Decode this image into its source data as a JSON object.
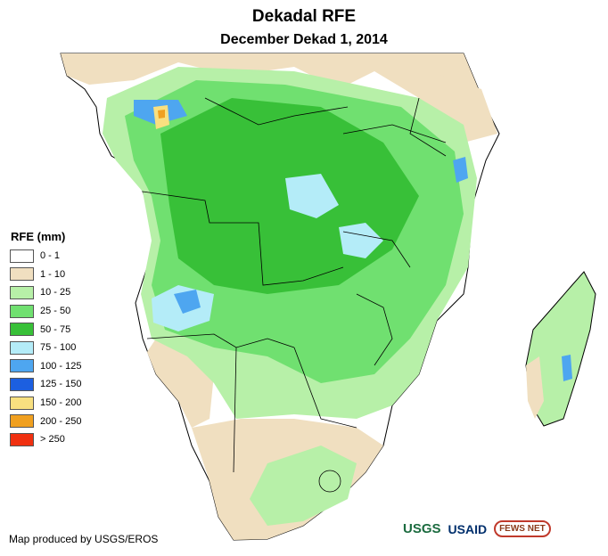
{
  "title": "Dekadal RFE",
  "subtitle": "December Dekad 1, 2014",
  "legend": {
    "title": "RFE (mm)",
    "items": [
      {
        "label": "0 - 1",
        "color": "#ffffff"
      },
      {
        "label": "1 - 10",
        "color": "#f0dfc0"
      },
      {
        "label": "10 - 25",
        "color": "#b7f0a8"
      },
      {
        "label": "25 - 50",
        "color": "#70e070"
      },
      {
        "label": "50 - 75",
        "color": "#38c038"
      },
      {
        "label": "75 - 100",
        "color": "#b4ecf8"
      },
      {
        "label": "100 - 125",
        "color": "#4ea6f0"
      },
      {
        "label": "125 - 150",
        "color": "#1c5fe0"
      },
      {
        "label": "150 - 200",
        "color": "#f8e080"
      },
      {
        "label": "200 - 250",
        "color": "#f0a020"
      },
      {
        "label": "> 250",
        "color": "#f03010"
      }
    ]
  },
  "credit": "Map produced by USGS/EROS",
  "logos": {
    "usgs": "USGS",
    "usaid": "USAID",
    "fews": "FEWS NET"
  }
}
